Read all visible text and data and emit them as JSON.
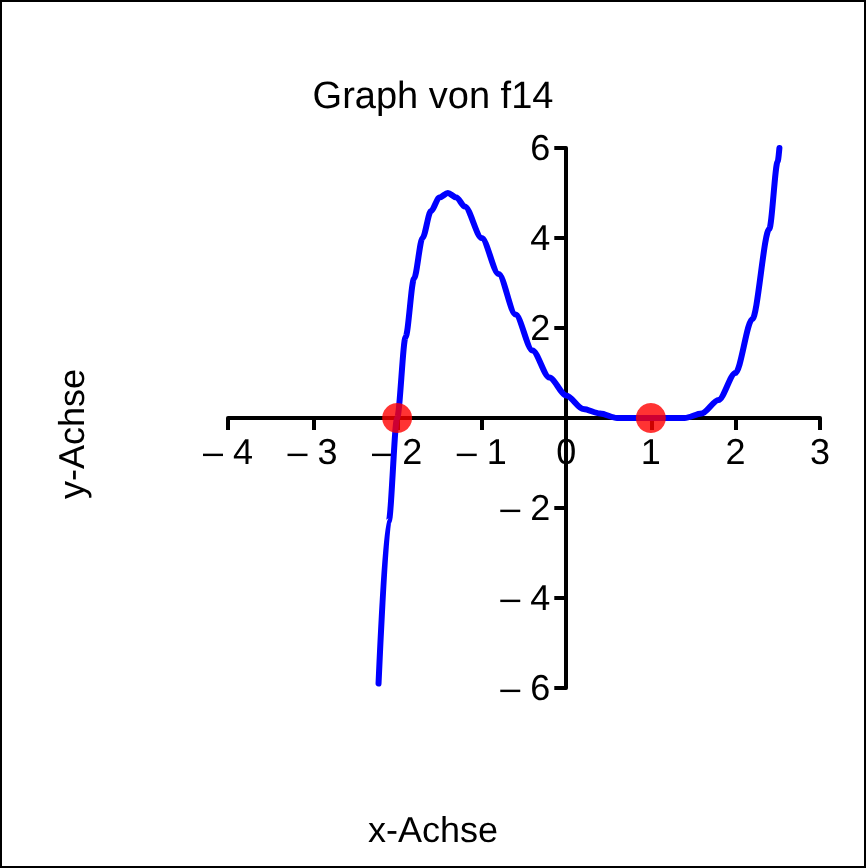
{
  "chart_data": {
    "type": "line",
    "title": "Graph von f14",
    "xlabel": "x-Achse",
    "ylabel": "y-Achse",
    "xlim": [
      -4,
      3
    ],
    "ylim": [
      -6,
      6
    ],
    "xticks": [
      {
        "value": -4,
        "label": "– 4"
      },
      {
        "value": -3,
        "label": "– 3"
      },
      {
        "value": -2,
        "label": "– 2"
      },
      {
        "value": -1,
        "label": "– 1"
      },
      0,
      1,
      2,
      3
    ],
    "yticks": [
      {
        "value": -6,
        "label": "– 6"
      },
      {
        "value": -4,
        "label": "– 4"
      },
      {
        "value": -2,
        "label": "– 2"
      },
      2,
      4,
      6
    ],
    "grid": false,
    "series": [
      {
        "color": "#0000ff",
        "marker": "none",
        "x": [
          -2.22,
          -2.1,
          -2.0,
          -1.9,
          -1.8,
          -1.7,
          -1.6,
          -1.5,
          -1.4,
          -1.3,
          -1.2,
          -1.0,
          -0.8,
          -0.6,
          -0.4,
          -0.2,
          0,
          0.2,
          0.4,
          0.6,
          0.8,
          1.0,
          1.2,
          1.4,
          1.6,
          1.8,
          2.0,
          2.2,
          2.4,
          2.5,
          2.52
        ],
        "values": [
          -5.9,
          -2.3,
          0,
          1.8,
          3.1,
          4.0,
          4.6,
          4.9,
          5.0,
          4.9,
          4.7,
          4.0,
          3.2,
          2.3,
          1.5,
          0.9,
          0.5,
          0.2,
          0.1,
          0.0,
          0.0,
          0,
          0.0,
          0.0,
          0.1,
          0.4,
          1.0,
          2.2,
          4.2,
          5.7,
          6.0
        ]
      },
      {
        "type": "scatter",
        "color": "#ff0000",
        "marker": "circle",
        "x": [
          -2,
          1
        ],
        "values": [
          0,
          0
        ]
      }
    ]
  }
}
